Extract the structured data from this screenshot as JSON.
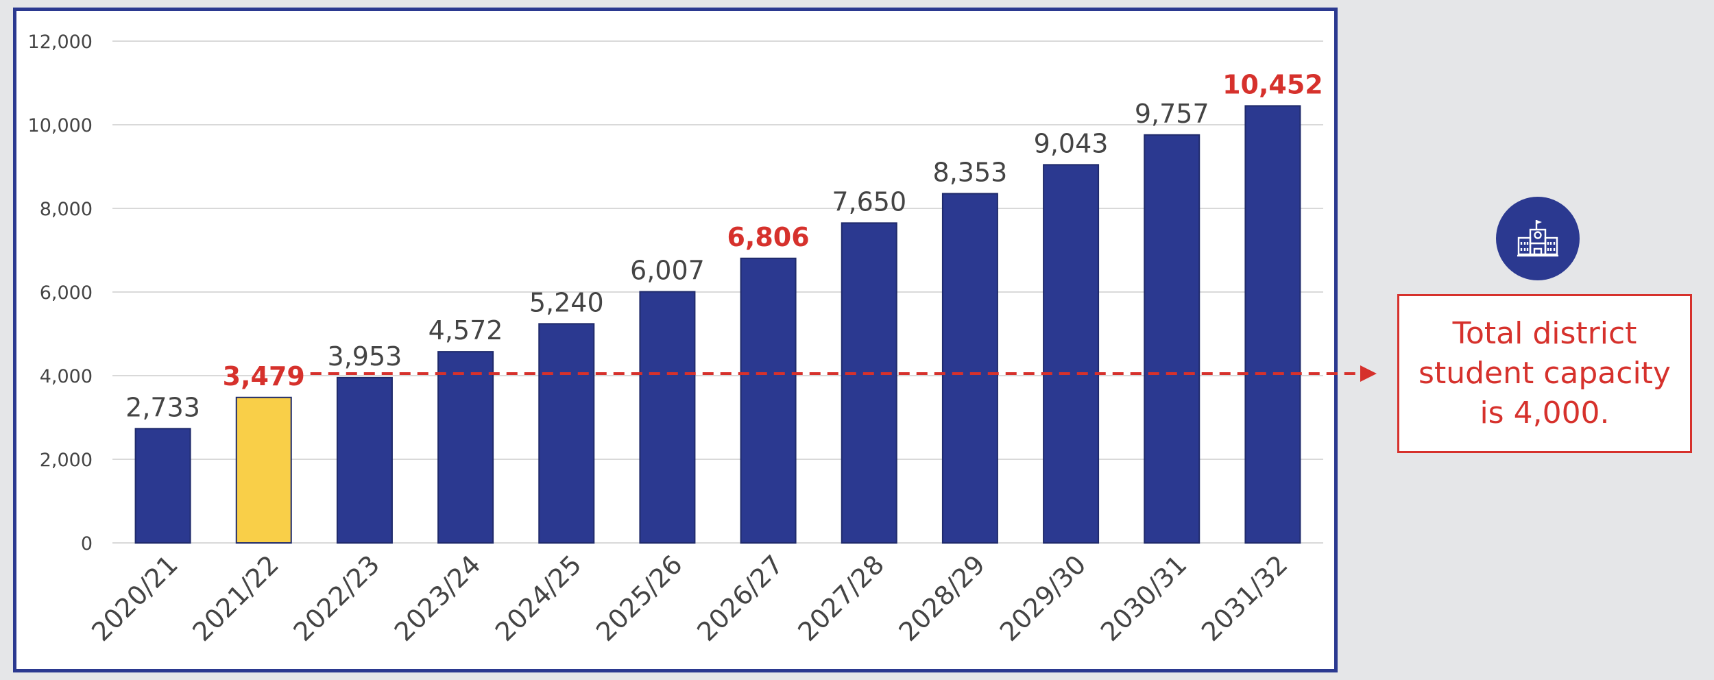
{
  "colors": {
    "bar": "#2b3990",
    "bar_highlight": "#f9cf48",
    "accent_red": "#d6312c",
    "label_gray": "#444444",
    "grid": "#d9d9d9",
    "frame": "#2b3990"
  },
  "icon": {
    "name": "school-building-icon"
  },
  "callout": {
    "text": "Total district student capacity is 4,000."
  },
  "chart_data": {
    "type": "bar",
    "categories": [
      "2020/21",
      "2021/22",
      "2022/23",
      "2023/24",
      "2024/25",
      "2025/26",
      "2026/27",
      "2027/28",
      "2028/29",
      "2029/30",
      "2030/31",
      "2031/32"
    ],
    "values": [
      2733,
      3479,
      3953,
      4572,
      5240,
      6007,
      6806,
      7650,
      8353,
      9043,
      9757,
      10452
    ],
    "value_labels": [
      "2,733",
      "3,479",
      "3,953",
      "4,572",
      "5,240",
      "6,007",
      "6,806",
      "7,650",
      "8,353",
      "9,043",
      "9,757",
      "10,452"
    ],
    "highlight_bar_index": 1,
    "highlight_label_indices": [
      1,
      6,
      11
    ],
    "ylim": [
      0,
      12000
    ],
    "yticks": [
      0,
      2000,
      4000,
      6000,
      8000,
      10000,
      12000
    ],
    "ytick_labels": [
      "0",
      "2,000",
      "4,000",
      "6,000",
      "8,000",
      "10,000",
      "12,000"
    ],
    "grid": true,
    "reference_line": {
      "value": 4000,
      "style": "dashed",
      "arrow": "right"
    },
    "title": "",
    "xlabel": "",
    "ylabel": ""
  }
}
